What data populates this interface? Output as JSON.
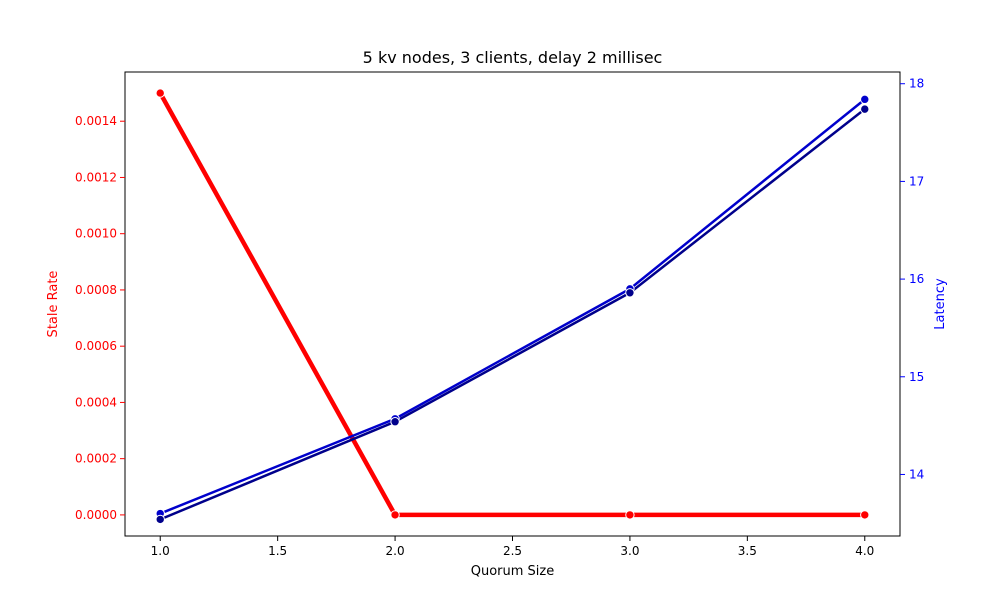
{
  "chart_data": {
    "type": "line",
    "title": "5 kv nodes, 3 clients, delay 2 millisec",
    "xlabel": "Quorum Size",
    "ylabel_left": "Stale Rate",
    "ylabel_right": "Latency",
    "xlim": [
      0.85,
      4.15
    ],
    "ylim_left": [
      -7.5e-05,
      0.001575
    ],
    "ylim_right": [
      13.37,
      18.12
    ],
    "x_ticks": [
      "1.0",
      "1.5",
      "2.0",
      "2.5",
      "3.0",
      "3.5",
      "4.0"
    ],
    "y_left_ticks": [
      "0.0000",
      "0.0002",
      "0.0004",
      "0.0006",
      "0.0008",
      "0.0010",
      "0.0012",
      "0.0014"
    ],
    "y_right_ticks": [
      "14",
      "15",
      "16",
      "17",
      "18"
    ],
    "grid": false,
    "left_axis_color": "#ff0000",
    "right_axis_color": "#0000ff",
    "series": [
      {
        "axis": "left",
        "color": "#ff0000",
        "x": [
          1.0,
          2.0,
          3.0,
          4.0
        ],
        "values": [
          0.0015,
          0.0,
          0.0,
          0.0
        ]
      },
      {
        "axis": "right",
        "color": "#0000cc",
        "x": [
          1.0,
          2.0,
          3.0,
          4.0
        ],
        "values": [
          13.6,
          14.57,
          15.9,
          17.84
        ]
      },
      {
        "axis": "right",
        "color": "#00008b",
        "x": [
          1.0,
          2.0,
          3.0,
          4.0
        ],
        "values": [
          13.54,
          14.54,
          15.86,
          17.74
        ]
      }
    ]
  }
}
